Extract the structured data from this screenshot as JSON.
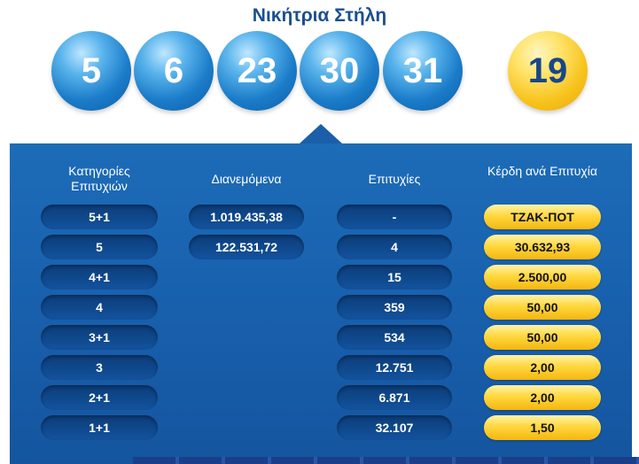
{
  "title": "Νικήτρια Στήλη",
  "balls": [
    "5",
    "6",
    "23",
    "30",
    "31"
  ],
  "bonus_ball": "19",
  "colors": {
    "accent": "#1b4f8f",
    "panel": "#1860ad",
    "bonus": "#f7c21b"
  },
  "headers": {
    "categories": "Κατηγορίες Επιτυχιών",
    "distributed": "Διανεμόμενα",
    "winners": "Επιτυχίες",
    "prize": "Κέρδη ανά Επιτυχία"
  },
  "rows": [
    {
      "category": "5+1",
      "distributed": "1.019.435,38",
      "winners": "-",
      "prize": "ΤΖΑΚ-ΠΟΤ"
    },
    {
      "category": "5",
      "distributed": "122.531,72",
      "winners": "4",
      "prize": "30.632,93"
    },
    {
      "category": "4+1",
      "winners": "15",
      "prize": "2.500,00"
    },
    {
      "category": "4",
      "winners": "359",
      "prize": "50,00"
    },
    {
      "category": "3+1",
      "winners": "534",
      "prize": "50,00"
    },
    {
      "category": "3",
      "winners": "12.751",
      "prize": "2,00"
    },
    {
      "category": "2+1",
      "winners": "6.871",
      "prize": "2,00"
    },
    {
      "category": "1+1",
      "winners": "32.107",
      "prize": "1,50"
    }
  ]
}
